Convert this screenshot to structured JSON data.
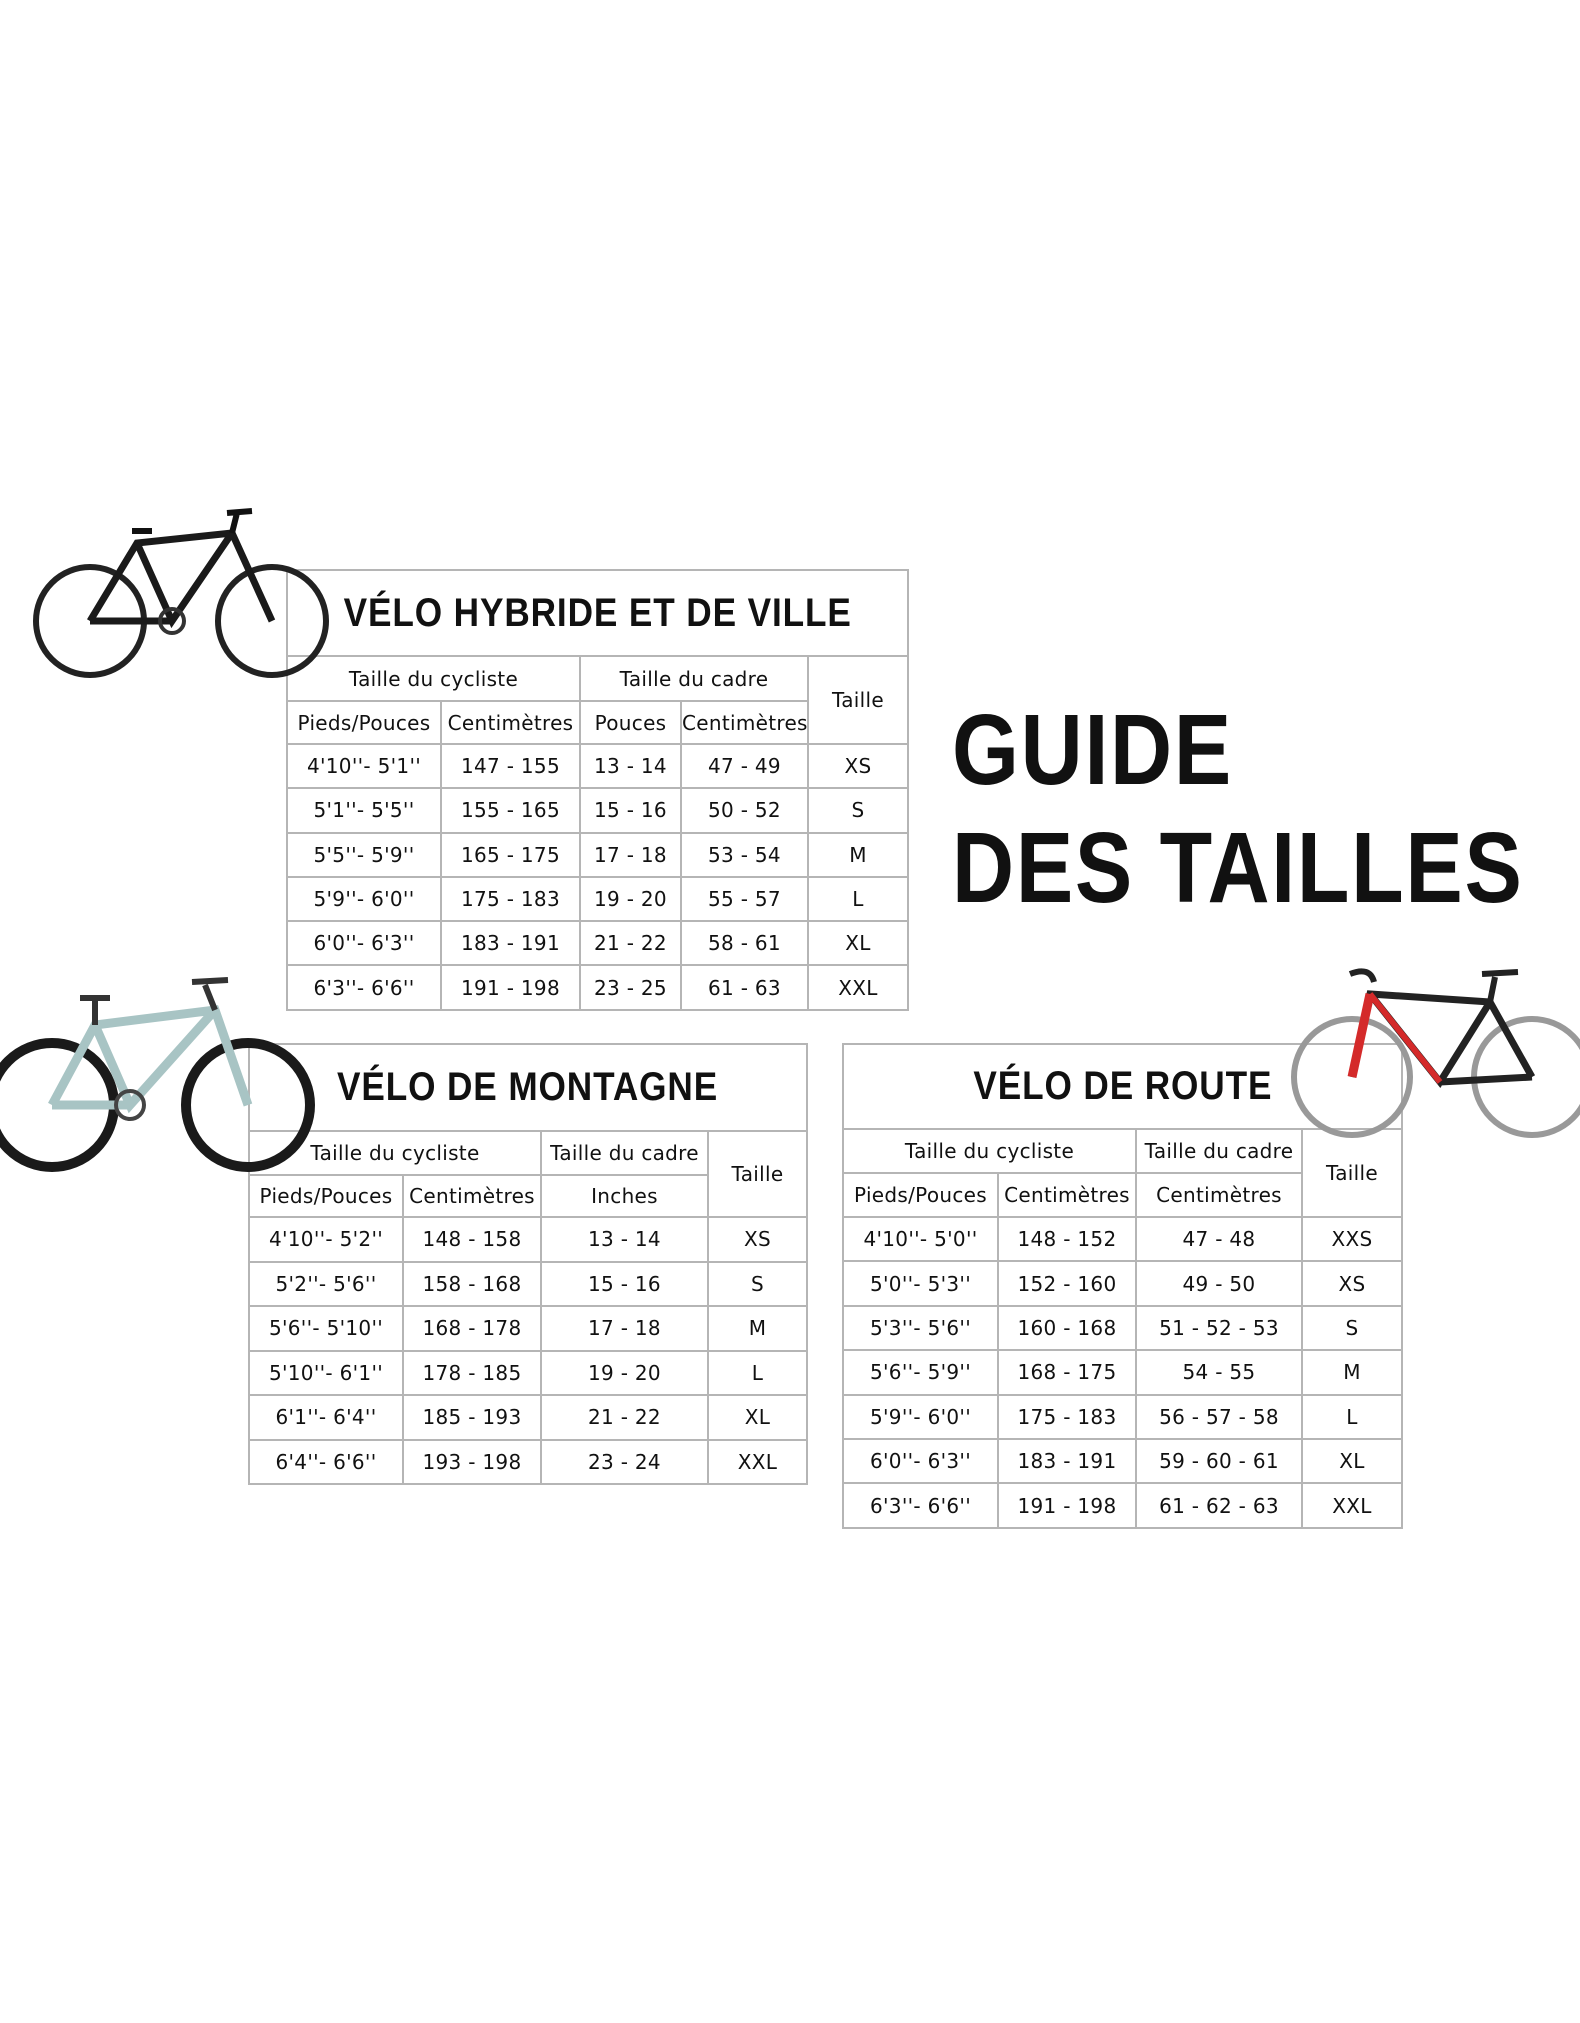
{
  "heading": {
    "line1": "GUIDE",
    "line2": "DES TAILLES"
  },
  "tables": [
    {
      "title": "VÉLO HYBRIDE ET DE VILLE",
      "groups": [
        "Taille du cycliste",
        "Taille du cadre",
        "Taille"
      ],
      "columns": [
        "Pieds/Pouces",
        "Centimètres",
        "Pouces",
        "Centimètres"
      ],
      "rows": [
        [
          "4'10''- 5'1''",
          "147 - 155",
          "13 - 14",
          "47 - 49",
          "XS"
        ],
        [
          "5'1''- 5'5''",
          "155 - 165",
          "15 - 16",
          "50 - 52",
          "S"
        ],
        [
          "5'5''- 5'9''",
          "165 - 175",
          "17 - 18",
          "53 - 54",
          "M"
        ],
        [
          "5'9''- 6'0''",
          "175 - 183",
          "19 - 20",
          "55 - 57",
          "L"
        ],
        [
          "6'0''- 6'3''",
          "183 - 191",
          "21 - 22",
          "58 - 61",
          "XL"
        ],
        [
          "6'3''- 6'6''",
          "191 - 198",
          "23 - 25",
          "61 - 63",
          "XXL"
        ]
      ]
    },
    {
      "title": "VÉLO DE MONTAGNE",
      "groups": [
        "Taille du cycliste",
        "Taille du cadre",
        "Taille"
      ],
      "columns": [
        "Pieds/Pouces",
        "Centimètres",
        "Inches"
      ],
      "rows": [
        [
          "4'10''- 5'2''",
          "148 - 158",
          "13 - 14",
          "XS"
        ],
        [
          "5'2''- 5'6''",
          "158 - 168",
          "15 - 16",
          "S"
        ],
        [
          "5'6''- 5'10''",
          "168 - 178",
          "17 - 18",
          "M"
        ],
        [
          "5'10''- 6'1''",
          "178 - 185",
          "19 - 20",
          "L"
        ],
        [
          "6'1''- 6'4''",
          "185 - 193",
          "21 - 22",
          "XL"
        ],
        [
          "6'4''- 6'6''",
          "193 - 198",
          "23 - 24",
          "XXL"
        ]
      ]
    },
    {
      "title": "VÉLO DE ROUTE",
      "groups": [
        "Taille du cycliste",
        "Taille du cadre",
        "Taille"
      ],
      "columns": [
        "Pieds/Pouces",
        "Centimètres",
        "Centimètres"
      ],
      "rows": [
        [
          "4'10''- 5'0''",
          "148 - 152",
          "47 - 48",
          "XXS"
        ],
        [
          "5'0''- 5'3''",
          "152 - 160",
          "49 - 50",
          "XS"
        ],
        [
          "5'3''- 5'6''",
          "160 - 168",
          "51 - 52 - 53",
          "S"
        ],
        [
          "5'6''- 5'9''",
          "168 - 175",
          "54 - 55",
          "M"
        ],
        [
          "5'9''- 6'0''",
          "175 - 183",
          "56 - 57 - 58",
          "L"
        ],
        [
          "6'0''- 6'3''",
          "183 - 191",
          "59 - 60 - 61",
          "XL"
        ],
        [
          "6'3''- 6'6''",
          "191 - 198",
          "61 - 62 - 63",
          "XXL"
        ]
      ]
    }
  ],
  "colors": {
    "border": "#b5b5b5",
    "road_bike_accent": "#d42a2a",
    "mtb_frame": "#a8c4c4"
  }
}
